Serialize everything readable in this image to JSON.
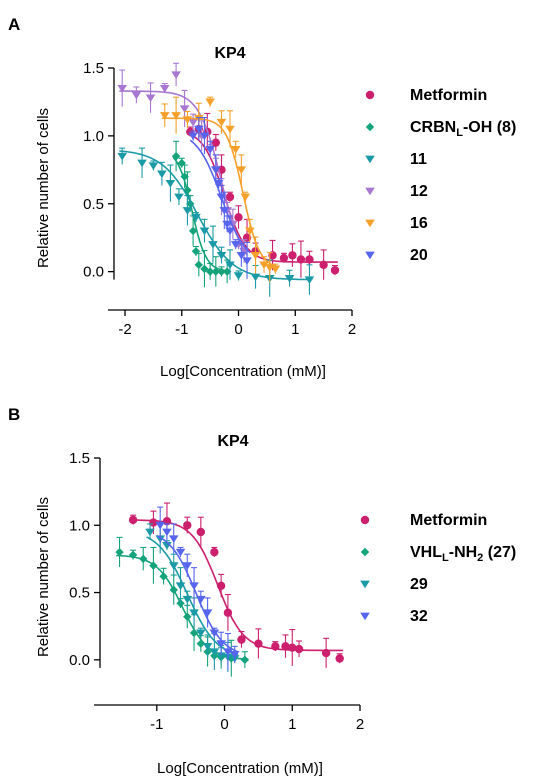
{
  "figure": {
    "panels": [
      {
        "letter": "A",
        "chart_data": {
          "type": "scatter",
          "title": "KP4",
          "xlabel": "Log[Concentration (mM)]",
          "ylabel": "Relative number of cells",
          "xlim": [
            -2.3,
            2
          ],
          "ylim": [
            -0.15,
            1.5
          ],
          "xticks": [
            "-2",
            "-1",
            "0",
            "1",
            "2"
          ],
          "yticks": [
            "0.0",
            "0.5",
            "1.0",
            "1.5"
          ],
          "xtick_values": [
            -2,
            -1,
            0,
            1,
            2
          ],
          "ytick_values": [
            0,
            0.5,
            1.0,
            1.5
          ],
          "legend_position": "right",
          "series": [
            {
              "name": "Metformin",
              "legend_main": "Metformin",
              "legend_sub": "",
              "legend_tail": "",
              "color": "#cc1f6e",
              "marker": "circle",
              "curve": {
                "top": 1.05,
                "bottom": 0.07,
                "ic50": -0.25,
                "hill": 2.3
              },
              "points": [
                [
                  -0.85,
                  1.03
                ],
                [
                  -0.7,
                  1.05
                ],
                [
                  -0.55,
                  1.03
                ],
                [
                  -0.4,
                  0.95
                ],
                [
                  -0.3,
                  0.75
                ],
                [
                  -0.15,
                  0.55
                ],
                [
                  0.0,
                  0.4
                ],
                [
                  0.15,
                  0.25
                ],
                [
                  0.3,
                  0.15
                ],
                [
                  0.6,
                  0.12
                ],
                [
                  0.8,
                  0.1
                ],
                [
                  0.95,
                  0.12
                ],
                [
                  1.1,
                  0.09
                ],
                [
                  1.25,
                  0.09
                ],
                [
                  1.5,
                  0.05
                ],
                [
                  1.7,
                  0.01
                ]
              ]
            },
            {
              "name": "CRBNL-OH (8)",
              "legend_main": "CRBN",
              "legend_sub": "L",
              "legend_tail": "-OH (8)",
              "color": "#14a37a",
              "marker": "diamond",
              "curve": {
                "top": 0.9,
                "bottom": 0.0,
                "ic50": -0.82,
                "hill": 3.5
              },
              "points": [
                [
                  -1.1,
                  0.85
                ],
                [
                  -1.0,
                  0.8
                ],
                [
                  -0.95,
                  0.7
                ],
                [
                  -0.9,
                  0.6
                ],
                [
                  -0.85,
                  0.5
                ],
                [
                  -0.8,
                  0.3
                ],
                [
                  -0.75,
                  0.15
                ],
                [
                  -0.7,
                  0.05
                ],
                [
                  -0.6,
                  0.02
                ],
                [
                  -0.5,
                  0.0
                ],
                [
                  -0.4,
                  0.0
                ],
                [
                  -0.3,
                  0.0
                ],
                [
                  -0.2,
                  0.0
                ]
              ]
            },
            {
              "name": "11",
              "legend_main": "11",
              "legend_sub": "",
              "legend_tail": "",
              "color": "#1a9aa6",
              "marker": "triangle-down",
              "curve": {
                "top": 0.9,
                "bottom": -0.06,
                "ic50": -0.72,
                "hill": 1.4
              },
              "points": [
                [
                  -2.05,
                  0.85
                ],
                [
                  -1.7,
                  0.8
                ],
                [
                  -1.5,
                  0.78
                ],
                [
                  -1.35,
                  0.72
                ],
                [
                  -1.2,
                  0.65
                ],
                [
                  -1.05,
                  0.55
                ],
                [
                  -0.9,
                  0.45
                ],
                [
                  -0.75,
                  0.4
                ],
                [
                  -0.6,
                  0.3
                ],
                [
                  -0.45,
                  0.2
                ],
                [
                  -0.3,
                  0.12
                ],
                [
                  -0.15,
                  0.05
                ],
                [
                  0.0,
                  -0.03
                ],
                [
                  0.3,
                  -0.04
                ],
                [
                  0.55,
                  -0.05
                ],
                [
                  0.9,
                  -0.05
                ],
                [
                  1.25,
                  -0.06
                ]
              ]
            },
            {
              "name": "12",
              "legend_main": "12",
              "legend_sub": "",
              "legend_tail": "",
              "color": "#a877d1",
              "marker": "triangle-down",
              "curve": {
                "top": 1.33,
                "bottom": 0.0,
                "ic50": -0.3,
                "hill": 2.2
              },
              "points": [
                [
                  -2.05,
                  1.35
                ],
                [
                  -1.8,
                  1.3
                ],
                [
                  -1.55,
                  1.28
                ],
                [
                  -1.3,
                  1.35
                ],
                [
                  -1.1,
                  1.45
                ],
                [
                  -0.95,
                  1.2
                ],
                [
                  -0.8,
                  1.1
                ],
                [
                  -0.65,
                  1.0
                ],
                [
                  -0.5,
                  0.9
                ],
                [
                  -0.4,
                  0.75
                ],
                [
                  -0.3,
                  0.55
                ],
                [
                  -0.2,
                  0.45
                ],
                [
                  -0.1,
                  0.35
                ],
                [
                  0.0,
                  0.2
                ],
                [
                  0.1,
                  0.15
                ]
              ]
            },
            {
              "name": "16",
              "legend_main": "16",
              "legend_sub": "",
              "legend_tail": "",
              "color": "#f5a02a",
              "marker": "triangle-down",
              "curve": {
                "top": 1.13,
                "bottom": 0.02,
                "ic50": 0.08,
                "hill": 3.0
              },
              "points": [
                [
                  -1.3,
                  1.15
                ],
                [
                  -1.1,
                  1.15
                ],
                [
                  -0.9,
                  1.12
                ],
                [
                  -0.7,
                  1.13
                ],
                [
                  -0.5,
                  1.25
                ],
                [
                  -0.3,
                  1.1
                ],
                [
                  -0.15,
                  1.05
                ],
                [
                  -0.05,
                  0.9
                ],
                [
                  0.05,
                  0.75
                ],
                [
                  0.12,
                  0.55
                ],
                [
                  0.2,
                  0.3
                ],
                [
                  0.3,
                  0.12
                ],
                [
                  0.45,
                  0.05
                ],
                [
                  0.55,
                  0.03
                ],
                [
                  0.65,
                  0.02
                ]
              ]
            },
            {
              "name": "20",
              "legend_main": "20",
              "legend_sub": "",
              "legend_tail": "",
              "color": "#5664ee",
              "marker": "triangle-down",
              "curve": {
                "top": 1.04,
                "bottom": 0.05,
                "ic50": -0.3,
                "hill": 2.0
              },
              "points": [
                [
                  -0.8,
                  1.0
                ],
                [
                  -0.7,
                  1.05
                ],
                [
                  -0.6,
                  1.0
                ],
                [
                  -0.5,
                  0.9
                ],
                [
                  -0.4,
                  0.75
                ],
                [
                  -0.35,
                  0.65
                ],
                [
                  -0.3,
                  0.55
                ],
                [
                  -0.25,
                  0.45
                ],
                [
                  -0.2,
                  0.35
                ],
                [
                  -0.15,
                  0.3
                ],
                [
                  -0.05,
                  0.2
                ],
                [
                  0.05,
                  0.12
                ],
                [
                  0.15,
                  0.08
                ]
              ]
            }
          ]
        }
      },
      {
        "letter": "B",
        "chart_data": {
          "type": "scatter",
          "title": "KP4",
          "xlabel": "Log[Concentration (mM)]",
          "ylabel": "Relative number of cells",
          "xlim": [
            -1.75,
            2
          ],
          "ylim": [
            -0.15,
            1.5
          ],
          "xticks": [
            "-1",
            "0",
            "1",
            "2"
          ],
          "yticks": [
            "0.0",
            "0.5",
            "1.0",
            "1.5"
          ],
          "xtick_values": [
            -1,
            0,
            1,
            2
          ],
          "ytick_values": [
            0,
            0.5,
            1.0,
            1.5
          ],
          "legend_position": "right",
          "series": [
            {
              "name": "Metformin",
              "legend_main": "Metformin",
              "legend_sub": "",
              "legend_tail": "",
              "color": "#cc1f6e",
              "marker": "circle",
              "curve": {
                "top": 1.04,
                "bottom": 0.07,
                "ic50": -0.1,
                "hill": 2.3
              },
              "points": [
                [
                  -1.35,
                  1.04
                ],
                [
                  -1.05,
                  1.02
                ],
                [
                  -0.85,
                  1.03
                ],
                [
                  -0.55,
                  1.0
                ],
                [
                  -0.35,
                  0.95
                ],
                [
                  -0.15,
                  0.8
                ],
                [
                  -0.05,
                  0.55
                ],
                [
                  0.05,
                  0.35
                ],
                [
                  0.25,
                  0.15
                ],
                [
                  0.5,
                  0.12
                ],
                [
                  0.75,
                  0.1
                ],
                [
                  0.9,
                  0.1
                ],
                [
                  1.0,
                  0.09
                ],
                [
                  1.1,
                  0.08
                ],
                [
                  1.5,
                  0.05
                ],
                [
                  1.7,
                  0.01
                ]
              ]
            },
            {
              "name": "VHLL-NH2 (27)",
              "legend_main": "VHL",
              "legend_sub": "L",
              "legend_tail": "-NH",
              "legend_sub2": "2",
              "legend_tail2": " (27)",
              "color": "#14a37a",
              "marker": "diamond",
              "curve": {
                "top": 0.78,
                "bottom": 0.0,
                "ic50": -0.62,
                "hill": 2.3
              },
              "points": [
                [
                  -1.55,
                  0.8
                ],
                [
                  -1.35,
                  0.78
                ],
                [
                  -1.2,
                  0.75
                ],
                [
                  -1.05,
                  0.7
                ],
                [
                  -0.9,
                  0.62
                ],
                [
                  -0.75,
                  0.52
                ],
                [
                  -0.65,
                  0.42
                ],
                [
                  -0.55,
                  0.32
                ],
                [
                  -0.45,
                  0.2
                ],
                [
                  -0.35,
                  0.12
                ],
                [
                  -0.25,
                  0.06
                ],
                [
                  -0.15,
                  0.03
                ],
                [
                  -0.05,
                  0.02
                ],
                [
                  0.1,
                  0.01
                ],
                [
                  0.3,
                  0.0
                ]
              ]
            },
            {
              "name": "29",
              "legend_main": "29",
              "legend_sub": "",
              "legend_tail": "",
              "color": "#1a9aa6",
              "marker": "triangle-down",
              "curve": {
                "top": 0.97,
                "bottom": 0.01,
                "ic50": -0.55,
                "hill": 2.0
              },
              "points": [
                [
                  -1.1,
                  0.95
                ],
                [
                  -0.95,
                  0.9
                ],
                [
                  -0.85,
                  0.85
                ],
                [
                  -0.75,
                  0.7
                ],
                [
                  -0.65,
                  0.55
                ],
                [
                  -0.55,
                  0.45
                ],
                [
                  -0.45,
                  0.35
                ],
                [
                  -0.35,
                  0.2
                ],
                [
                  -0.25,
                  0.1
                ],
                [
                  -0.15,
                  0.06
                ],
                [
                  -0.05,
                  0.03
                ],
                [
                  0.05,
                  0.02
                ],
                [
                  0.15,
                  0.01
                ]
              ]
            },
            {
              "name": "32",
              "legend_main": "32",
              "legend_sub": "",
              "legend_tail": "",
              "color": "#5664ee",
              "marker": "triangle-down",
              "curve": {
                "top": 0.97,
                "bottom": 0.02,
                "ic50": -0.42,
                "hill": 2.2
              },
              "points": [
                [
                  -0.95,
                  1.0
                ],
                [
                  -0.85,
                  0.95
                ],
                [
                  -0.75,
                  0.9
                ],
                [
                  -0.65,
                  0.8
                ],
                [
                  -0.55,
                  0.7
                ],
                [
                  -0.45,
                  0.55
                ],
                [
                  -0.35,
                  0.45
                ],
                [
                  -0.25,
                  0.35
                ],
                [
                  -0.15,
                  0.2
                ],
                [
                  -0.05,
                  0.12
                ],
                [
                  0.05,
                  0.06
                ],
                [
                  0.15,
                  0.04
                ]
              ]
            }
          ]
        }
      }
    ]
  }
}
